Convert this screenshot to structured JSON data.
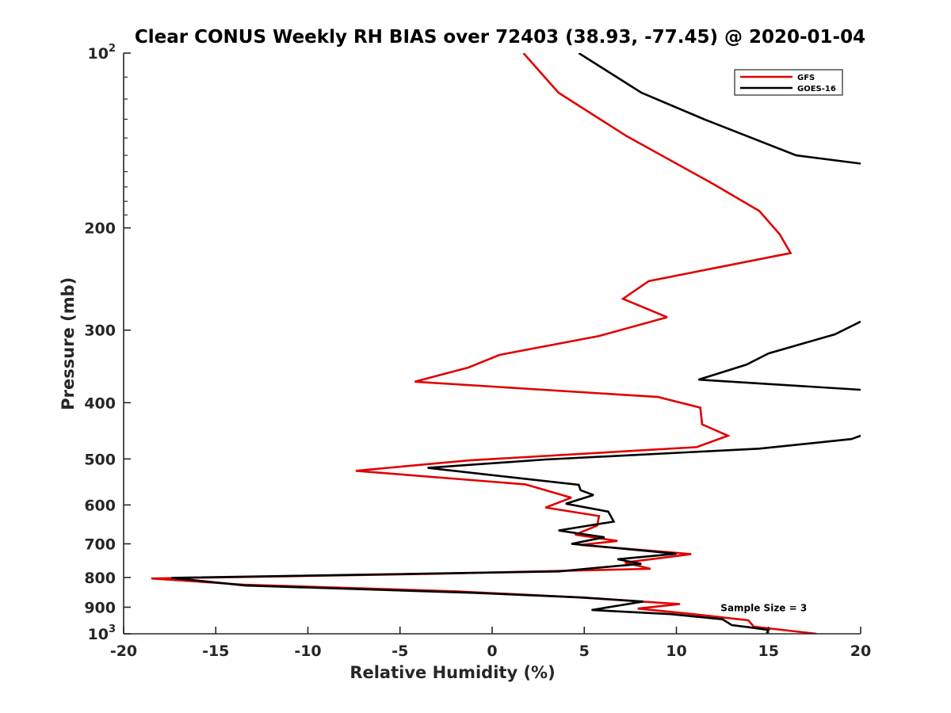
{
  "chart_data": {
    "type": "line",
    "title": "Clear CONUS Weekly RH BIAS over 72403 (38.93, -77.45) @ 2020-01-04",
    "xlabel": "Relative Humidity (%)",
    "ylabel": "Pressure (mb)",
    "xlim": [
      -20,
      20
    ],
    "ylim": [
      100,
      1000
    ],
    "y_scale": "log",
    "y_reversed": true,
    "grid": false,
    "legend_position": "top-right",
    "x_ticks": [
      "-20",
      "-15",
      "-10",
      "-5",
      "0",
      "5",
      "10",
      "15",
      "20"
    ],
    "y_ticks": [
      {
        "value": 100,
        "base": "10",
        "exp": "2"
      },
      {
        "value": 200,
        "label": "200"
      },
      {
        "value": 300,
        "label": "300"
      },
      {
        "value": 400,
        "label": "400"
      },
      {
        "value": 500,
        "label": "500"
      },
      {
        "value": 600,
        "label": "600"
      },
      {
        "value": 700,
        "label": "700"
      },
      {
        "value": 800,
        "label": "800"
      },
      {
        "value": 900,
        "label": "900"
      },
      {
        "value": 1000,
        "base": "10",
        "exp": "3"
      }
    ],
    "annotation": "Sample Size = 3",
    "series": [
      {
        "name": "GFS",
        "color": "#e00000",
        "points": [
          [
            1.7,
            100
          ],
          [
            3.6,
            117
          ],
          [
            7.3,
            139
          ],
          [
            12.0,
            168
          ],
          [
            14.5,
            187
          ],
          [
            15.6,
            205
          ],
          [
            16.2,
            221
          ],
          [
            8.5,
            247
          ],
          [
            7.1,
            265
          ],
          [
            9.5,
            285
          ],
          [
            5.8,
            307
          ],
          [
            0.4,
            331
          ],
          [
            -1.3,
            348
          ],
          [
            -4.2,
            368
          ],
          [
            9.0,
            391
          ],
          [
            11.3,
            408
          ],
          [
            11.4,
            436
          ],
          [
            12.8,
            456
          ],
          [
            11.1,
            477
          ],
          [
            -1.3,
            503
          ],
          [
            -7.4,
            524
          ],
          [
            1.8,
            553
          ],
          [
            4.3,
            583
          ],
          [
            2.9,
            606
          ],
          [
            5.8,
            627
          ],
          [
            5.7,
            651
          ],
          [
            4.5,
            675
          ],
          [
            6.8,
            692
          ],
          [
            4.8,
            703
          ],
          [
            10.8,
            729
          ],
          [
            7.2,
            754
          ],
          [
            8.6,
            773
          ],
          [
            -3.0,
            788
          ],
          [
            -18.5,
            803
          ],
          [
            -13.5,
            823
          ],
          [
            -2.0,
            845
          ],
          [
            4.5,
            865
          ],
          [
            10.2,
            889
          ],
          [
            7.9,
            905
          ],
          [
            10.9,
            925
          ],
          [
            13.9,
            948
          ],
          [
            14.2,
            972
          ],
          [
            17.6,
            1000
          ]
        ]
      },
      {
        "name": "GOES-16",
        "color": "#000000",
        "segments": [
          [
            [
              4.7,
              100
            ],
            [
              8.1,
              117
            ],
            [
              11.5,
              130
            ],
            [
              16.5,
              150
            ],
            [
              20.0,
              155
            ]
          ],
          [
            [
              20.0,
              290
            ],
            [
              18.6,
              305
            ],
            [
              15.0,
              329
            ],
            [
              13.8,
              344
            ],
            [
              11.2,
              365
            ],
            [
              20.0,
              380
            ]
          ],
          [
            [
              20.0,
              456
            ],
            [
              19.5,
              462
            ],
            [
              14.5,
              480
            ],
            [
              2.9,
              501
            ],
            [
              -3.5,
              518
            ],
            [
              4.7,
              554
            ],
            [
              4.8,
              566
            ],
            [
              5.5,
              577
            ],
            [
              4.0,
              597
            ],
            [
              6.3,
              616
            ],
            [
              6.6,
              641
            ],
            [
              3.6,
              664
            ],
            [
              6.1,
              682
            ],
            [
              4.3,
              700
            ],
            [
              10.0,
              728
            ],
            [
              6.8,
              744
            ],
            [
              8.1,
              758
            ],
            [
              7.0,
              763
            ],
            [
              3.6,
              781
            ],
            [
              -17.4,
              801
            ],
            [
              -13.4,
              826
            ],
            [
              -1.0,
              850
            ],
            [
              4.9,
              866
            ],
            [
              8.2,
              880
            ],
            [
              5.4,
              910
            ],
            [
              9.7,
              925
            ],
            [
              12.5,
              944
            ],
            [
              13.0,
              966
            ],
            [
              14.0,
              975
            ],
            [
              15.0,
              985
            ],
            [
              14.9,
              998
            ]
          ]
        ]
      }
    ]
  }
}
